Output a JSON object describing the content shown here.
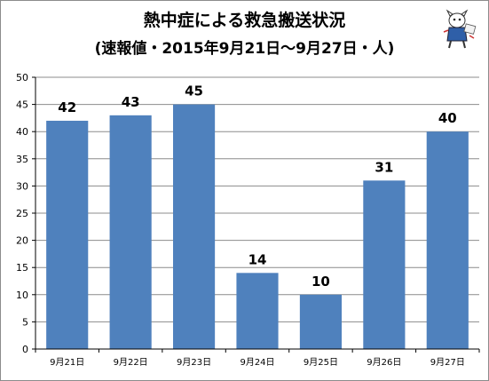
{
  "chart_data": {
    "type": "bar",
    "title": "熱中症による救急搬送状況",
    "subtitle": "(速報値・2015年9月21日～9月27日・人)",
    "categories": [
      "9月21日",
      "9月22日",
      "9月23日",
      "9月24日",
      "9月25日",
      "9月26日",
      "9月27日"
    ],
    "values": [
      42,
      43,
      45,
      14,
      10,
      31,
      40
    ],
    "ylim": [
      0,
      50
    ],
    "yticks": [
      0,
      5,
      10,
      15,
      20,
      25,
      30,
      35,
      40,
      45,
      50
    ],
    "grid": true,
    "bar_color": "#4f81bd",
    "grid_color": "#8c8c8c"
  },
  "decorations": {
    "mascot": "newspaper-mascot-icon"
  }
}
